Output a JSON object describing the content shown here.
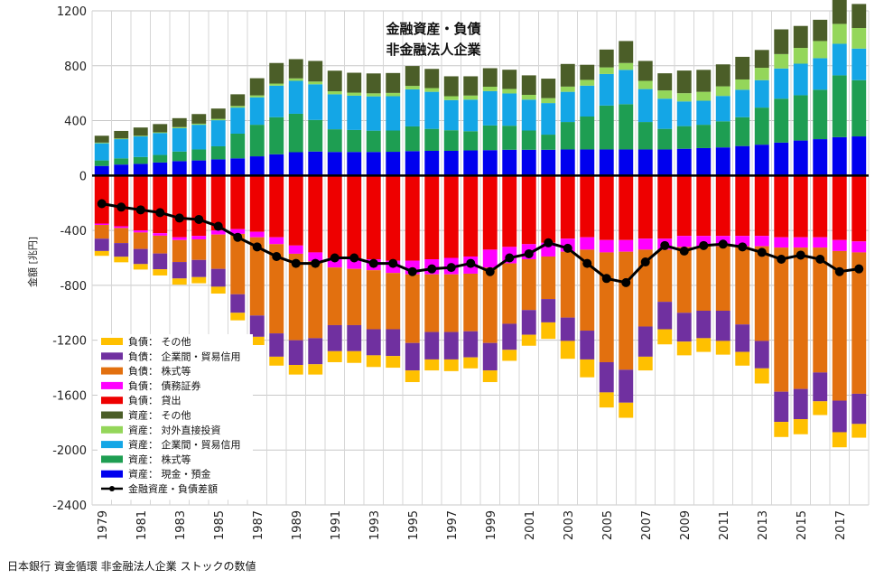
{
  "chart_data": {
    "type": "bar",
    "stacked": true,
    "title": [
      "金融資産・負債",
      "非金融法人企業"
    ],
    "ylabel": "金額 [兆円]",
    "xlabel": "",
    "ylim": [
      -2400,
      1200
    ],
    "yticks": [
      1200,
      800,
      400,
      0,
      -400,
      -800,
      -1200,
      -1600,
      -2000,
      -2400
    ],
    "grid": true,
    "legend_position": "bottom-left",
    "x": [
      1979,
      1980,
      1981,
      1982,
      1983,
      1984,
      1985,
      1986,
      1987,
      1988,
      1989,
      1990,
      1991,
      1992,
      1993,
      1994,
      1995,
      1996,
      1997,
      1998,
      1999,
      2000,
      2001,
      2002,
      2003,
      2004,
      2005,
      2006,
      2007,
      2008,
      2009,
      2010,
      2011,
      2012,
      2013,
      2014,
      2015,
      2016,
      2017,
      2018
    ],
    "xtick_labels": [
      "1979",
      "1981",
      "1983",
      "1985",
      "1987",
      "1989",
      "1991",
      "1993",
      "1995",
      "1997",
      "1999",
      "2001",
      "2003",
      "2005",
      "2007",
      "2009",
      "2011",
      "2013",
      "2015",
      "2017"
    ],
    "assets": [
      {
        "name": "資産： 現金・預金",
        "color": "#0000ee",
        "values": [
          70,
          80,
          85,
          95,
          105,
          110,
          118,
          125,
          140,
          155,
          170,
          175,
          172,
          172,
          172,
          173,
          178,
          180,
          180,
          183,
          185,
          188,
          188,
          188,
          190,
          190,
          190,
          190,
          190,
          190,
          195,
          200,
          205,
          215,
          225,
          240,
          255,
          265,
          280,
          285
        ]
      },
      {
        "name": "資産： 株式等",
        "color": "#1e9e52",
        "values": [
          40,
          45,
          50,
          55,
          70,
          80,
          95,
          180,
          230,
          270,
          280,
          230,
          165,
          160,
          155,
          155,
          180,
          160,
          150,
          140,
          180,
          175,
          140,
          110,
          200,
          240,
          320,
          330,
          200,
          150,
          165,
          170,
          190,
          210,
          270,
          320,
          330,
          360,
          450,
          410
        ]
      },
      {
        "name": "資産： 企業間・貿易信用",
        "color": "#14a6e6",
        "values": [
          125,
          140,
          150,
          160,
          170,
          180,
          190,
          190,
          200,
          230,
          240,
          260,
          255,
          250,
          250,
          250,
          270,
          270,
          220,
          230,
          250,
          235,
          225,
          230,
          220,
          225,
          230,
          250,
          240,
          220,
          180,
          175,
          185,
          200,
          200,
          220,
          230,
          230,
          230,
          230
        ]
      },
      {
        "name": "資産： 対外直接投資",
        "color": "#94d65a",
        "values": [
          5,
          5,
          5,
          5,
          8,
          8,
          10,
          12,
          14,
          15,
          18,
          20,
          22,
          22,
          22,
          24,
          25,
          27,
          28,
          30,
          32,
          33,
          35,
          36,
          38,
          42,
          48,
          50,
          60,
          60,
          60,
          65,
          70,
          75,
          90,
          105,
          115,
          125,
          145,
          150
        ]
      },
      {
        "name": "資産： その他",
        "color": "#4b5e28",
        "values": [
          50,
          55,
          60,
          60,
          65,
          70,
          75,
          85,
          125,
          150,
          140,
          150,
          150,
          145,
          145,
          145,
          145,
          140,
          145,
          140,
          135,
          140,
          142,
          142,
          165,
          110,
          130,
          160,
          145,
          125,
          165,
          160,
          160,
          165,
          130,
          180,
          160,
          155,
          190,
          175
        ]
      }
    ],
    "liabilities": [
      {
        "name": "負債： 貸出",
        "color": "#ee0000",
        "values": [
          -350,
          -370,
          -400,
          -420,
          -450,
          -440,
          -400,
          -390,
          -410,
          -450,
          -510,
          -560,
          -600,
          -605,
          -610,
          -620,
          -620,
          -610,
          -600,
          -590,
          -540,
          -520,
          -500,
          -490,
          -460,
          -450,
          -470,
          -470,
          -460,
          -460,
          -440,
          -440,
          -440,
          -440,
          -440,
          -450,
          -450,
          -450,
          -470,
          -480
        ]
      },
      {
        "name": "負債： 債務証券",
        "color": "#ff00ff",
        "values": [
          -10,
          -12,
          -15,
          -18,
          -20,
          -25,
          -30,
          -35,
          -40,
          -50,
          -60,
          -65,
          -70,
          -75,
          -80,
          -90,
          -100,
          -110,
          -120,
          -125,
          -130,
          -120,
          -110,
          -100,
          -95,
          -90,
          -90,
          -85,
          -80,
          -80,
          -80,
          -75,
          -75,
          -75,
          -75,
          -75,
          -75,
          -75,
          -80,
          -80
        ]
      },
      {
        "name": "負債： 株式等",
        "color": "#e2700f",
        "values": [
          -100,
          -110,
          -120,
          -130,
          -160,
          -150,
          -250,
          -440,
          -570,
          -650,
          -630,
          -560,
          -420,
          -410,
          -430,
          -410,
          -500,
          -420,
          -420,
          -420,
          -550,
          -440,
          -370,
          -310,
          -480,
          -590,
          -800,
          -860,
          -560,
          -380,
          -480,
          -470,
          -470,
          -570,
          -690,
          -1050,
          -1030,
          -910,
          -1090,
          -1030
        ]
      },
      {
        "name": "負債： 企業間・貿易信用",
        "color": "#7030a0",
        "values": [
          -90,
          -100,
          -110,
          -115,
          -120,
          -125,
          -130,
          -135,
          -155,
          -170,
          -180,
          -190,
          -190,
          -190,
          -190,
          -195,
          -200,
          -200,
          -200,
          -190,
          -200,
          -190,
          -180,
          -170,
          -170,
          -210,
          -220,
          -240,
          -220,
          -200,
          -210,
          -200,
          -220,
          -200,
          -200,
          -220,
          -220,
          -210,
          -230,
          -220
        ]
      },
      {
        "name": "負債： その他",
        "color": "#ffc000",
        "values": [
          -35,
          -40,
          -40,
          -45,
          -45,
          -45,
          -50,
          -55,
          -60,
          -65,
          -70,
          -75,
          -80,
          -85,
          -85,
          -85,
          -85,
          -80,
          -85,
          -80,
          -85,
          -80,
          -80,
          -120,
          -130,
          -130,
          -110,
          -110,
          -100,
          -110,
          -100,
          -100,
          -100,
          -100,
          -110,
          -110,
          -110,
          -100,
          -110,
          -100
        ]
      }
    ],
    "line": {
      "name": "金融資産・負債差額",
      "color": "#000000",
      "values": [
        -205,
        -230,
        -250,
        -270,
        -310,
        -320,
        -370,
        -450,
        -520,
        -590,
        -640,
        -640,
        -600,
        -600,
        -640,
        -640,
        -700,
        -680,
        -670,
        -640,
        -700,
        -600,
        -570,
        -490,
        -530,
        -640,
        -750,
        -780,
        -630,
        -510,
        -550,
        -510,
        -500,
        -520,
        -560,
        -610,
        -580,
        -610,
        -700,
        -680
      ]
    }
  },
  "source_note": "日本銀行 資金循環 非金融法人企業 ストックの数値"
}
